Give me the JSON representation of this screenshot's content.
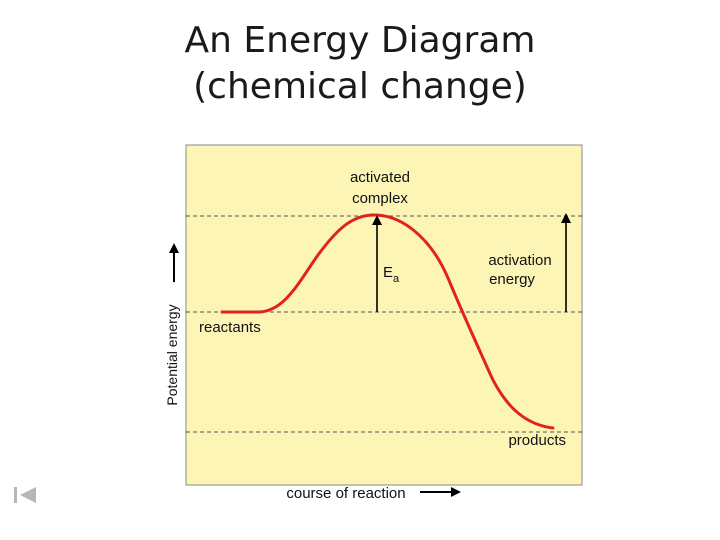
{
  "slide": {
    "title_line1": "An Energy Diagram",
    "title_line2": "(chemical change)"
  },
  "diagram": {
    "label_activated_line1": "activated",
    "label_activated_line2": "complex",
    "label_ea_main": "E",
    "label_ea_sub": "a",
    "label_activation_line1": "activation",
    "label_activation_line2": "energy",
    "label_reactants": "reactants",
    "label_products": "products",
    "y_axis_label": "Potential energy",
    "x_axis_label": "course of reaction",
    "colors": {
      "panel": "#fcf5b6",
      "curve": "#e0231e",
      "dashed": "#555555",
      "arrows": "#000000"
    }
  },
  "nav": {
    "icon": "first-slide-icon"
  }
}
